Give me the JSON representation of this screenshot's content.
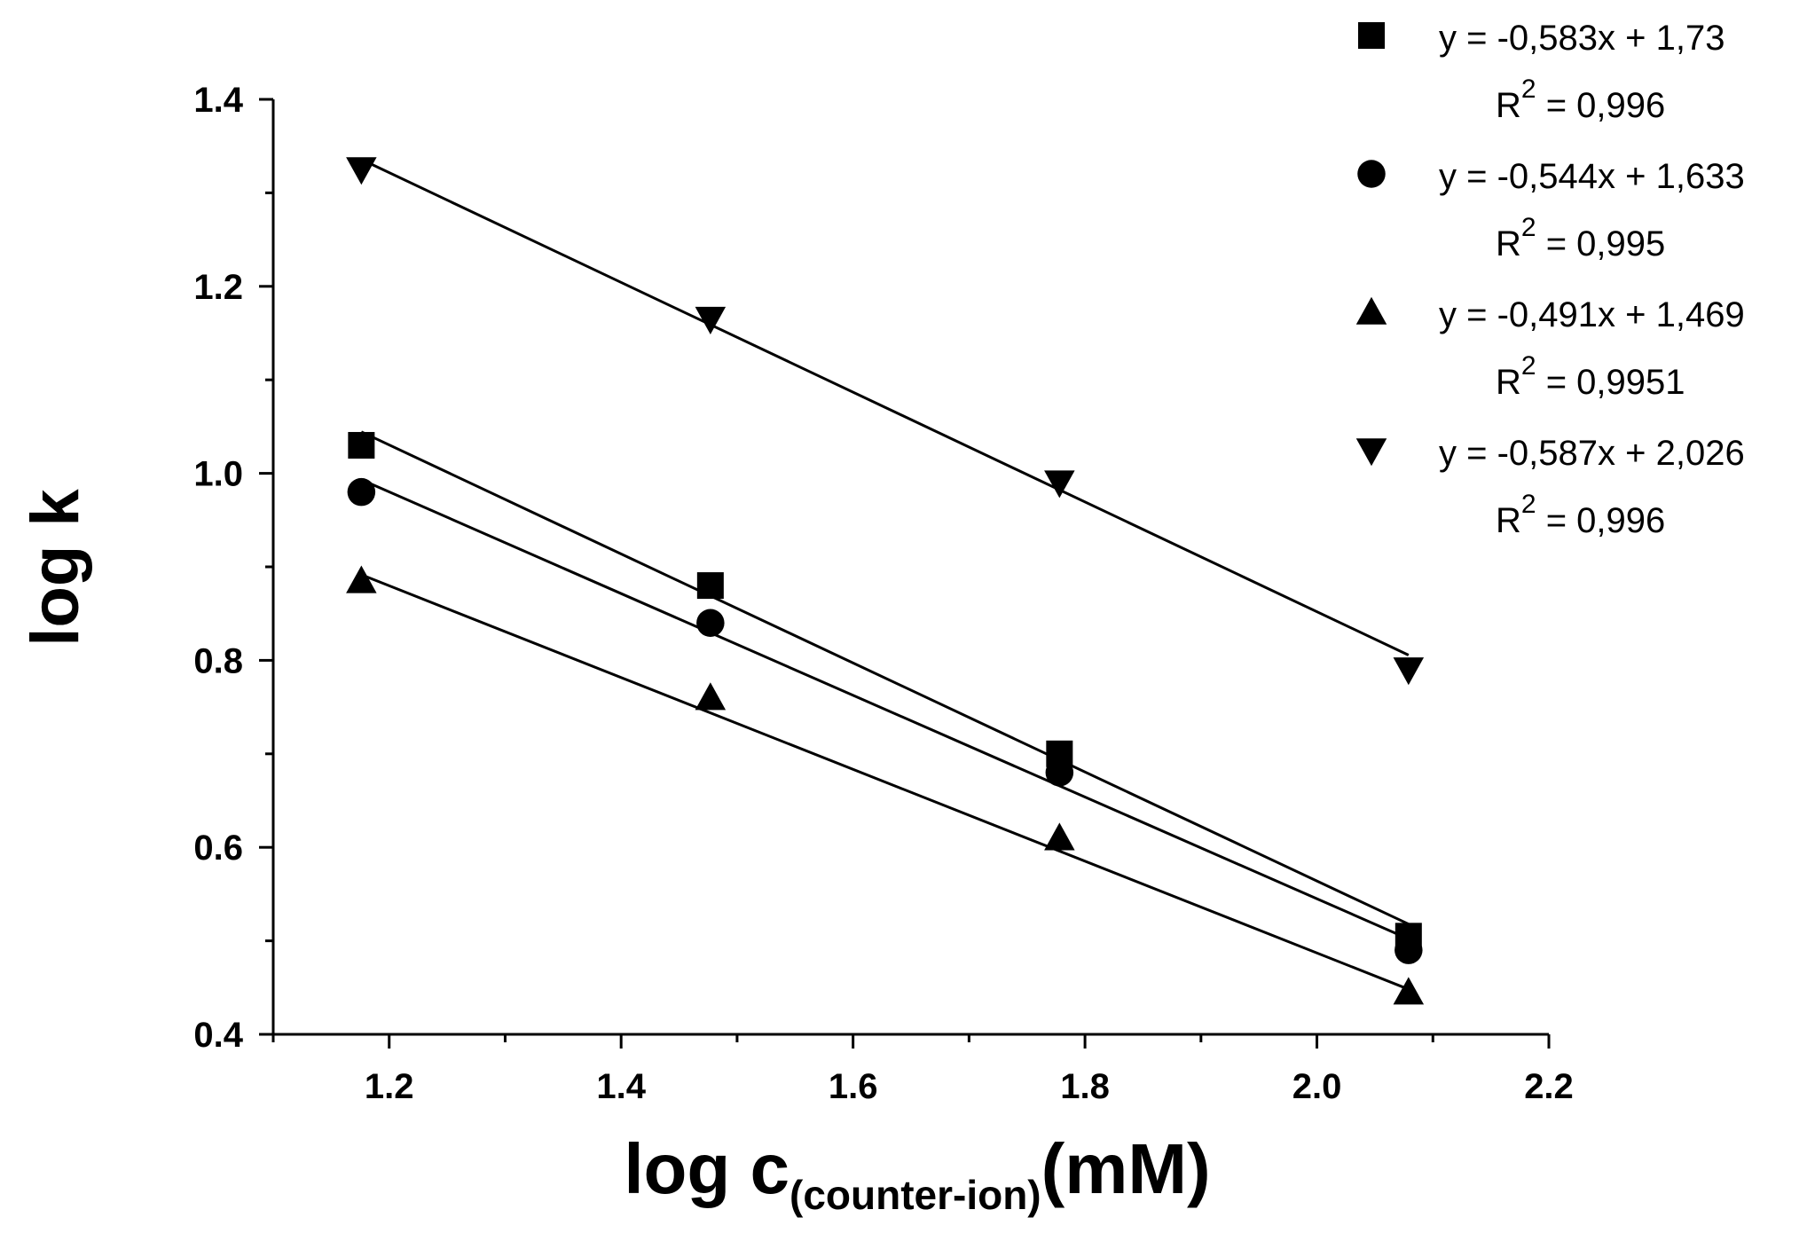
{
  "chart_data": {
    "type": "scatter",
    "title": "",
    "xlabel_main": "log c",
    "xlabel_sub": "(counter-ion)",
    "xlabel_unit": "(mM)",
    "ylabel": "log k",
    "xlim": [
      1.1,
      2.2
    ],
    "ylim": [
      0.4,
      1.4
    ],
    "x_ticks": [
      1.2,
      1.4,
      1.6,
      1.8,
      2.0,
      2.2
    ],
    "x_tick_labels": [
      "1.2",
      "1.4",
      "1.6",
      "1.8",
      "2.0",
      "2.2"
    ],
    "y_ticks": [
      0.4,
      0.6,
      0.8,
      1.0,
      1.2,
      1.4
    ],
    "y_tick_labels": [
      "0.4",
      "0.6",
      "0.8",
      "1.0",
      "1.2",
      "1.4"
    ],
    "grid": false,
    "legend_position": "top-right",
    "x": [
      1.176,
      1.477,
      1.778,
      2.079
    ],
    "series": [
      {
        "name": "square",
        "marker": "square",
        "values": [
          1.03,
          0.88,
          0.7,
          0.505
        ],
        "fit": {
          "slope": -0.583,
          "intercept": 1.73
        },
        "equation": "y = -0,583x + 1,73",
        "r2_label": "R",
        "r2_sup": "2",
        "r2_value": " = 0,996"
      },
      {
        "name": "circle",
        "marker": "circle",
        "values": [
          0.98,
          0.84,
          0.68,
          0.49
        ],
        "fit": {
          "slope": -0.544,
          "intercept": 1.633
        },
        "equation": "y = -0,544x + 1,633",
        "r2_label": "R",
        "r2_sup": "2",
        "r2_value": " = 0,995"
      },
      {
        "name": "triangle-up",
        "marker": "triangle-up",
        "values": [
          0.885,
          0.76,
          0.61,
          0.445
        ],
        "fit": {
          "slope": -0.491,
          "intercept": 1.469
        },
        "equation": "y = -0,491x + 1,469",
        "r2_label": "R",
        "r2_sup": "2",
        "r2_value": " = 0,9951"
      },
      {
        "name": "triangle-down",
        "marker": "triangle-down",
        "values": [
          1.325,
          1.165,
          0.99,
          0.79
        ],
        "fit": {
          "slope": -0.587,
          "intercept": 2.026
        },
        "equation": "y = -0,587x + 2,026",
        "r2_label": "R",
        "r2_sup": "2",
        "r2_value": " = 0,996"
      }
    ]
  }
}
